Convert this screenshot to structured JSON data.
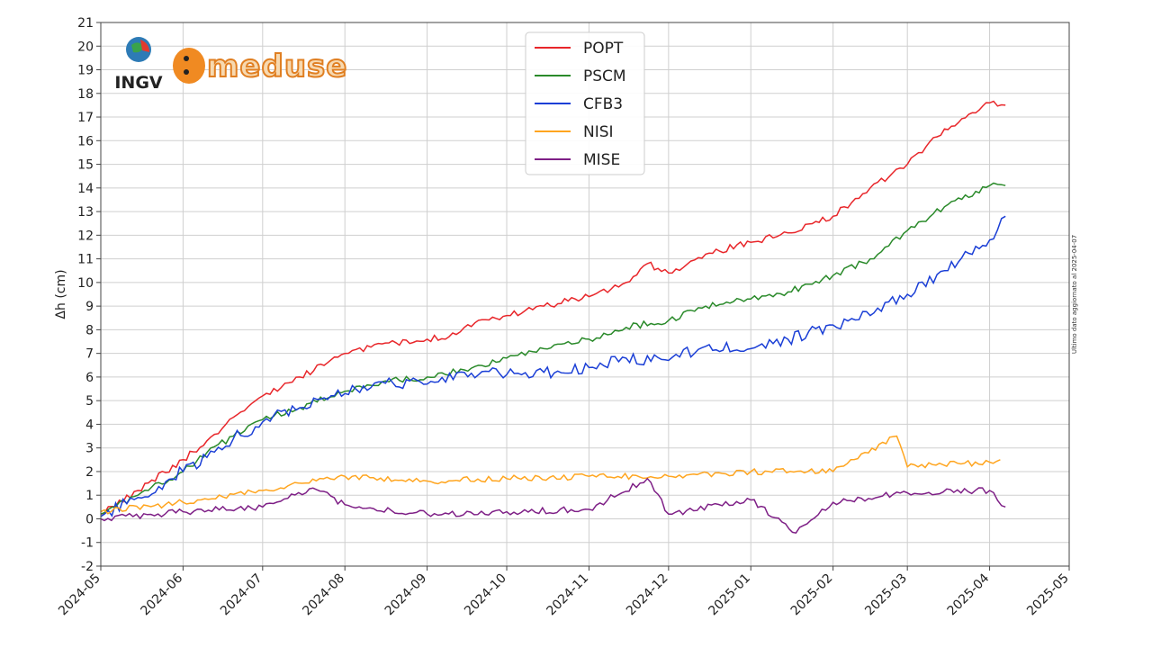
{
  "logos": {
    "ingv": "INGV",
    "medusa": "meduse"
  },
  "side_note": "Ultimo dato aggiornato al 2025-04-07",
  "chart_data": {
    "type": "line",
    "title": "",
    "xlabel": "",
    "ylabel": "Δh (cm)",
    "ylim": [
      -2,
      21
    ],
    "xlim": [
      "2024-05-01",
      "2025-05-01"
    ],
    "x_ticks": [
      "2024-05",
      "2024-06",
      "2024-07",
      "2024-08",
      "2024-09",
      "2024-10",
      "2024-11",
      "2024-12",
      "2025-01",
      "2025-02",
      "2025-03",
      "2025-04",
      "2025-05"
    ],
    "y_ticks": [
      -2,
      -1,
      0,
      1,
      2,
      3,
      4,
      5,
      6,
      7,
      8,
      9,
      10,
      11,
      12,
      13,
      14,
      15,
      16,
      17,
      18,
      19,
      20,
      21
    ],
    "grid": true,
    "legend_position": "top-center",
    "series": [
      {
        "name": "POPT",
        "color": "#e8262a",
        "x": [
          "2024-05-01",
          "2024-05-15",
          "2024-06-01",
          "2024-06-10",
          "2024-06-20",
          "2024-07-01",
          "2024-07-15",
          "2024-08-01",
          "2024-08-15",
          "2024-09-01",
          "2024-09-12",
          "2024-09-15",
          "2024-10-01",
          "2024-10-15",
          "2024-11-01",
          "2024-11-15",
          "2024-11-23",
          "2024-12-01",
          "2024-12-15",
          "2025-01-01",
          "2025-01-15",
          "2025-02-01",
          "2025-02-15",
          "2025-03-01",
          "2025-03-15",
          "2025-04-01",
          "2025-04-07"
        ],
        "y": [
          0.2,
          1.2,
          2.5,
          3.3,
          4.3,
          5.2,
          6.0,
          7.0,
          7.4,
          7.6,
          7.8,
          8.1,
          8.6,
          9.0,
          9.4,
          10.0,
          10.8,
          10.4,
          11.2,
          11.7,
          12.1,
          12.8,
          14.0,
          15.0,
          16.5,
          17.6,
          17.5
        ]
      },
      {
        "name": "PSCM",
        "color": "#2a8a2a",
        "x": [
          "2024-05-01",
          "2024-05-15",
          "2024-06-01",
          "2024-06-10",
          "2024-06-20",
          "2024-07-01",
          "2024-07-15",
          "2024-08-01",
          "2024-08-15",
          "2024-09-01",
          "2024-09-15",
          "2024-10-01",
          "2024-10-15",
          "2024-11-01",
          "2024-11-15",
          "2024-12-01",
          "2024-12-15",
          "2025-01-01",
          "2025-01-15",
          "2025-02-01",
          "2025-02-15",
          "2025-03-01",
          "2025-03-15",
          "2025-04-01",
          "2025-04-07"
        ],
        "y": [
          0.2,
          1.0,
          2.0,
          2.8,
          3.5,
          4.2,
          4.7,
          5.4,
          5.8,
          6.0,
          6.3,
          6.8,
          7.2,
          7.6,
          8.1,
          8.4,
          9.0,
          9.3,
          9.6,
          10.3,
          11.0,
          12.2,
          13.2,
          14.1,
          14.1
        ]
      },
      {
        "name": "CFB3",
        "color": "#1b3fd6",
        "x": [
          "2024-05-01",
          "2024-05-15",
          "2024-06-01",
          "2024-06-10",
          "2024-06-20",
          "2024-07-01",
          "2024-07-15",
          "2024-08-01",
          "2024-08-15",
          "2024-09-01",
          "2024-09-15",
          "2024-10-01",
          "2024-10-15",
          "2024-11-01",
          "2024-11-15",
          "2024-12-01",
          "2024-12-15",
          "2025-01-01",
          "2025-01-15",
          "2025-02-01",
          "2025-02-15",
          "2025-03-01",
          "2025-03-15",
          "2025-04-01",
          "2025-04-07"
        ],
        "y": [
          0.1,
          0.9,
          2.0,
          2.6,
          3.4,
          4.1,
          4.7,
          5.3,
          5.8,
          5.7,
          6.2,
          6.1,
          6.2,
          6.4,
          6.8,
          6.7,
          7.3,
          7.2,
          7.6,
          8.2,
          8.6,
          9.5,
          10.5,
          11.8,
          12.8
        ]
      },
      {
        "name": "NISI",
        "color": "#ffa51f",
        "x": [
          "2024-05-01",
          "2024-06-01",
          "2024-07-01",
          "2024-08-01",
          "2024-09-01",
          "2024-10-01",
          "2024-11-01",
          "2024-12-01",
          "2025-01-01",
          "2025-02-01",
          "2025-02-25",
          "2025-03-01",
          "2025-04-01",
          "2025-04-05"
        ],
        "y": [
          0.3,
          0.7,
          1.2,
          1.8,
          1.6,
          1.7,
          1.8,
          1.8,
          2.0,
          2.0,
          3.5,
          2.2,
          2.4,
          2.5
        ]
      },
      {
        "name": "MISE",
        "color": "#7e1f86",
        "x": [
          "2024-05-01",
          "2024-06-01",
          "2024-07-01",
          "2024-07-20",
          "2024-08-01",
          "2024-09-01",
          "2024-10-01",
          "2024-11-01",
          "2024-11-23",
          "2024-12-01",
          "2025-01-01",
          "2025-01-18",
          "2025-02-01",
          "2025-03-01",
          "2025-04-01",
          "2025-04-07"
        ],
        "y": [
          0.0,
          0.3,
          0.5,
          1.3,
          0.6,
          0.2,
          0.3,
          0.4,
          1.7,
          0.2,
          0.8,
          -0.6,
          0.7,
          1.1,
          1.2,
          0.5
        ]
      }
    ]
  }
}
